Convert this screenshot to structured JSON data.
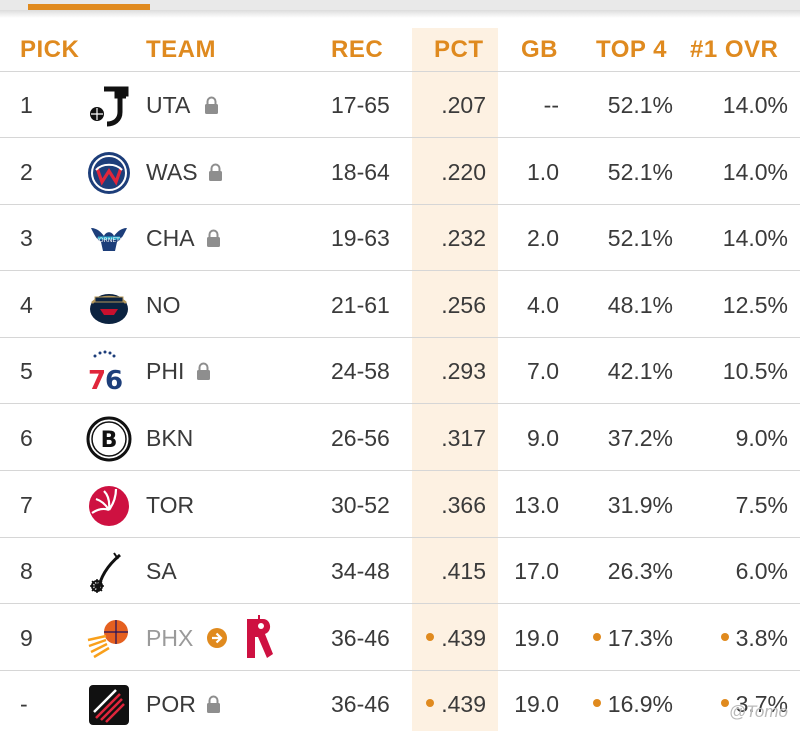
{
  "header": {
    "pick": "PICK",
    "team": "TEAM",
    "rec": "REC",
    "pct": "PCT",
    "gb": "GB",
    "top4": "TOP 4",
    "ovr": "#1 OVR"
  },
  "colors": {
    "accent": "#df8a1f",
    "pct_band": "#fdf1e2",
    "divider": "#d6d6d6"
  },
  "rows": [
    {
      "pick": "1",
      "team": "UTA",
      "logo": "jazz-logo",
      "lock": true,
      "rec": "17-65",
      "pct": ".207",
      "gb": "--",
      "top4": "52.1%",
      "ovr": "14.0%"
    },
    {
      "pick": "2",
      "team": "WAS",
      "logo": "wizards-logo",
      "lock": true,
      "rec": "18-64",
      "pct": ".220",
      "gb": "1.0",
      "top4": "52.1%",
      "ovr": "14.0%"
    },
    {
      "pick": "3",
      "team": "CHA",
      "logo": "hornets-logo",
      "lock": true,
      "rec": "19-63",
      "pct": ".232",
      "gb": "2.0",
      "top4": "52.1%",
      "ovr": "14.0%"
    },
    {
      "pick": "4",
      "team": "NO",
      "logo": "pelicans-logo",
      "lock": false,
      "rec": "21-61",
      "pct": ".256",
      "gb": "4.0",
      "top4": "48.1%",
      "ovr": "12.5%"
    },
    {
      "pick": "5",
      "team": "PHI",
      "logo": "76ers-logo",
      "lock": true,
      "rec": "24-58",
      "pct": ".293",
      "gb": "7.0",
      "top4": "42.1%",
      "ovr": "10.5%"
    },
    {
      "pick": "6",
      "team": "BKN",
      "logo": "nets-logo",
      "lock": false,
      "rec": "26-56",
      "pct": ".317",
      "gb": "9.0",
      "top4": "37.2%",
      "ovr": "9.0%"
    },
    {
      "pick": "7",
      "team": "TOR",
      "logo": "raptors-logo",
      "lock": false,
      "rec": "30-52",
      "pct": ".366",
      "gb": "13.0",
      "top4": "31.9%",
      "ovr": "7.5%"
    },
    {
      "pick": "8",
      "team": "SA",
      "logo": "spurs-logo",
      "lock": false,
      "rec": "34-48",
      "pct": ".415",
      "gb": "17.0",
      "top4": "26.3%",
      "ovr": "6.0%"
    },
    {
      "pick": "9",
      "team": "PHX",
      "logo": "suns-logo",
      "lock": false,
      "traded_to": "rockets-logo",
      "rec": "36-46",
      "pct": ".439",
      "gb": "19.0",
      "top4": "17.3%",
      "ovr": "3.8%",
      "tie": true
    },
    {
      "pick": "-",
      "team": "POR",
      "logo": "blazers-logo",
      "lock": true,
      "rec": "36-46",
      "pct": ".439",
      "gb": "19.0",
      "top4": "16.9%",
      "ovr": "3.7%",
      "tie": true
    }
  ],
  "watermark": "@Tomo"
}
